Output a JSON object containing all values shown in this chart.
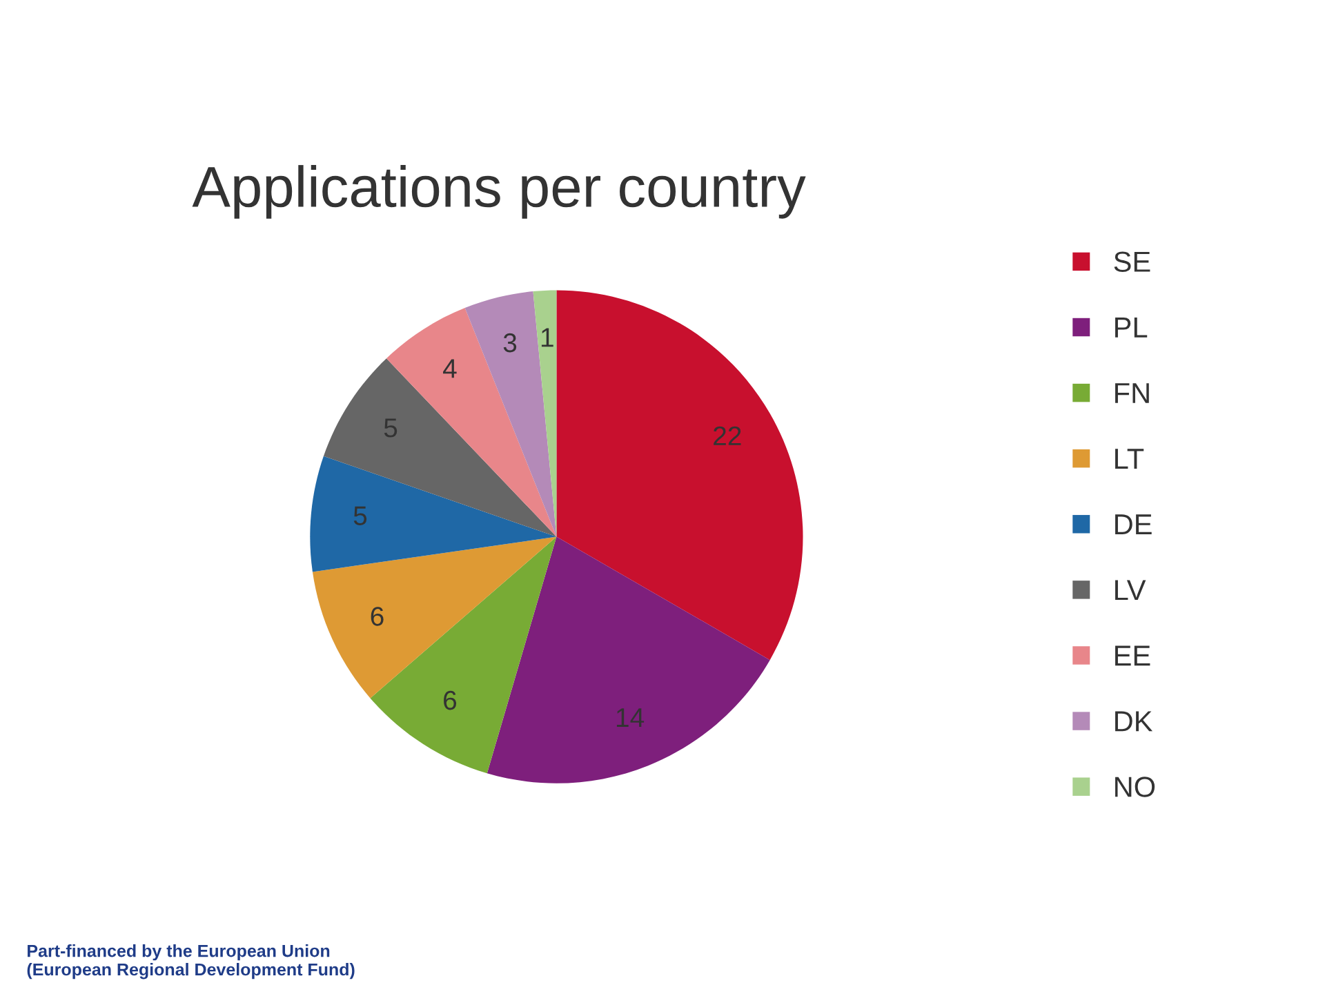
{
  "chart_data": {
    "type": "pie",
    "title": "Applications per country",
    "categories": [
      "SE",
      "PL",
      "FN",
      "LT",
      "DE",
      "LV",
      "EE",
      "DK",
      "NO"
    ],
    "values": [
      22,
      14,
      6,
      6,
      5,
      5,
      4,
      3,
      1
    ],
    "colors": [
      "#c8102e",
      "#7e1f7c",
      "#78ab35",
      "#de9a34",
      "#1f68a6",
      "#666666",
      "#e8868a",
      "#b48ab8",
      "#a9d18e"
    ],
    "data_labels": true,
    "legend": "right",
    "annotations": [
      "Part-financed by the European Union\n(European Regional Development Fund)"
    ]
  }
}
